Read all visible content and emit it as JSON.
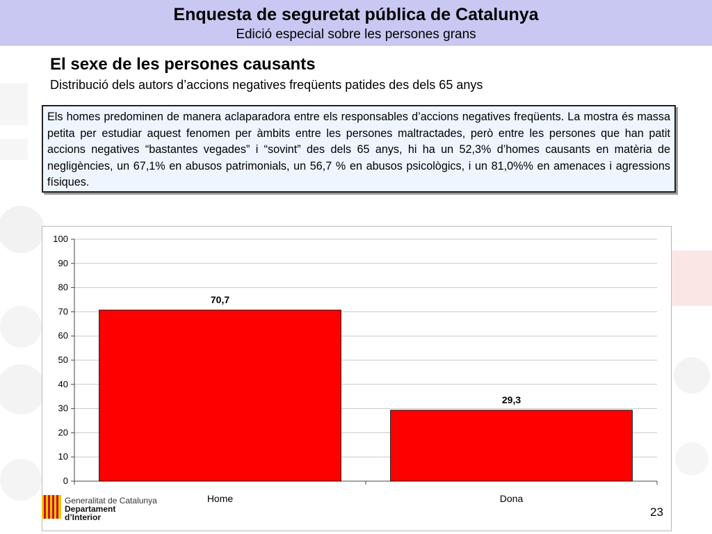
{
  "header": {
    "title": "Enquesta de seguretat pública de Catalunya",
    "subtitle": "Edició especial sobre les persones grans"
  },
  "slide": {
    "title": "El sexe de les persones causants",
    "subtitle": "Distribució dels autors d’accions negatives freqüents patides des dels 65 anys",
    "note": "Els homes predominen de manera aclaparadora entre els responsables d’accions negatives freqüents. La mostra és massa petita per estudiar aquest fenomen per àmbits entre les persones maltractades, però entre les persones que han patit accions negatives “bastantes vegades” i “sovint” des dels 65 anys, hi ha un 52,3% d’homes causants en matèria de negligències, un 67,1% en abusos patrimonials, un 56,7 % en abusos psicològics, i un 81,0%% en amenaces i agressions físiques."
  },
  "chart_data": {
    "type": "bar",
    "categories": [
      "Home",
      "Dona"
    ],
    "values": [
      70.7,
      29.3
    ],
    "value_labels": [
      "70,7",
      "29,3"
    ],
    "ylim": [
      0,
      100
    ],
    "yticks": [
      0,
      10,
      20,
      30,
      40,
      50,
      60,
      70,
      80,
      90,
      100
    ],
    "grid": true,
    "bar_color": "#ff0000",
    "legend": "none"
  },
  "footer": {
    "logo_line1": "Generalitat de Catalunya",
    "logo_line2": "Departament",
    "logo_line3": "d’Interior",
    "page_number": "23"
  },
  "colors": {
    "header_bg": "#c8c8f2",
    "note_bg": "#eef5ff",
    "logo_red": "#c8102e",
    "logo_yellow": "#f5c400"
  }
}
